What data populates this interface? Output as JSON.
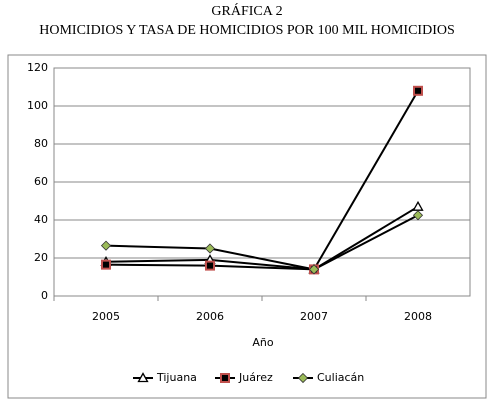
{
  "chart_data": {
    "type": "line",
    "title": "GRÁFICA 2",
    "subtitle": "HOMICIDIOS Y TASA DE HOMICIDIOS POR 100 MIL HOMICIDIOS",
    "x_label": "Año",
    "categories": [
      "2005",
      "2006",
      "2007",
      "2008"
    ],
    "series": [
      {
        "name": "Tijuana",
        "color": "#000000",
        "marker": "triangle",
        "values": [
          18,
          19,
          14,
          47
        ]
      },
      {
        "name": "Juárez",
        "color": "#c0504d",
        "marker": "square",
        "values": [
          16.5,
          16,
          14,
          108
        ]
      },
      {
        "name": "Culiacán",
        "color": "#9bbb59",
        "marker": "diamond",
        "values": [
          26.5,
          25,
          14,
          42.5
        ]
      }
    ],
    "ylim": [
      0,
      120
    ],
    "yticks": [
      0,
      20,
      40,
      60,
      80,
      100,
      120
    ],
    "grid": true,
    "legend": "bottom"
  }
}
